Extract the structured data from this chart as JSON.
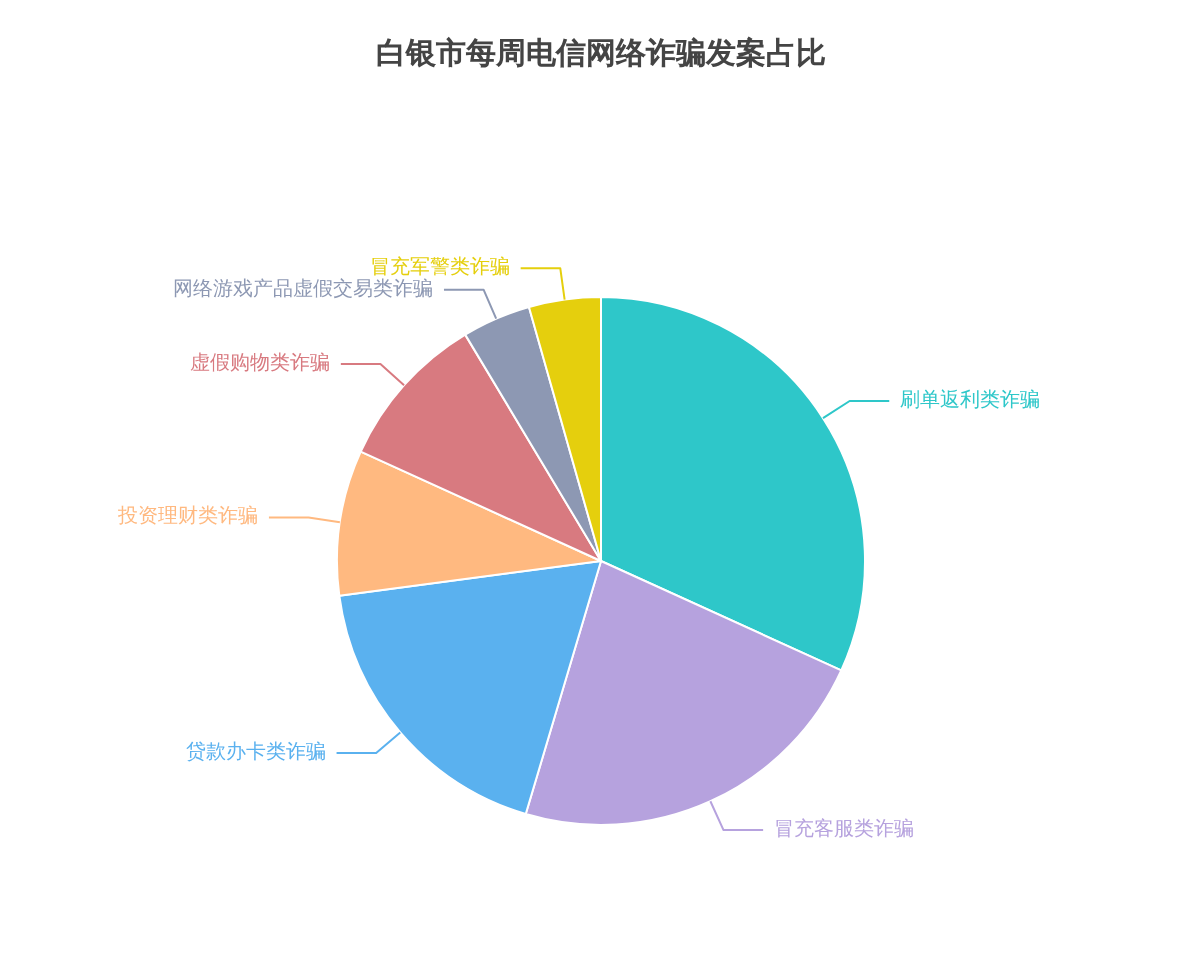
{
  "chart_data": {
    "type": "pie",
    "title": "白银市每周电信网络诈骗发案占比",
    "categories": [
      "刷单返利类诈骗",
      "冒充客服类诈骗",
      "贷款办卡类诈骗",
      "投资理财类诈骗",
      "虚假购物类诈骗",
      "网络游戏产品虚假交易类诈骗",
      "冒充军警类诈骗"
    ],
    "values": [
      31.8,
      22.8,
      18.3,
      8.9,
      9.6,
      4.2,
      4.4
    ],
    "colors": [
      "#2ec7c9",
      "#b6a2de",
      "#5ab1ef",
      "#ffb980",
      "#d87a80",
      "#8d98b3",
      "#e5cf0d"
    ],
    "legend": false
  }
}
